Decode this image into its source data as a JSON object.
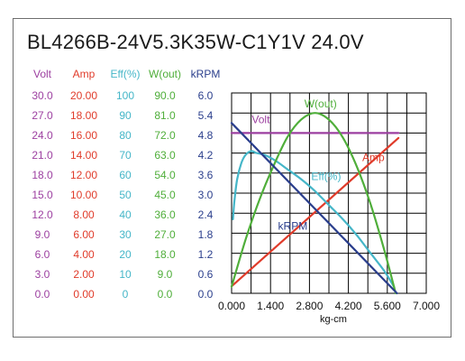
{
  "title": "BL4266B-24V5.3K35W-C1Y1V   24.0V",
  "chart_data": {
    "type": "line",
    "title": "BL4266B-24V5.3K35W-C1Y1V   24.0V",
    "xlabel": "kg-cm",
    "xlim": [
      0.0,
      7.0
    ],
    "x_ticks": [
      "0.000",
      "1.400",
      "2.800",
      "4.200",
      "5.600",
      "7.000"
    ],
    "grid": true,
    "y_axes": [
      {
        "key": "volt",
        "label": "Volt",
        "color": "#9c3fa0",
        "min": 0,
        "max": 30,
        "ticks": [
          "30.0",
          "27.0",
          "24.0",
          "21.0",
          "18.0",
          "15.0",
          "12.0",
          "9.0",
          "6.0",
          "3.0",
          "0.0"
        ]
      },
      {
        "key": "amp",
        "label": "Amp",
        "color": "#e03b2a",
        "min": 0,
        "max": 20,
        "ticks": [
          "20.00",
          "18.00",
          "16.00",
          "14.00",
          "12.00",
          "10.00",
          "8.00",
          "6.00",
          "4.00",
          "2.00",
          "0.00"
        ]
      },
      {
        "key": "eff",
        "label": "Eff(%)",
        "color": "#45b6c8",
        "min": 0,
        "max": 100,
        "ticks": [
          "100",
          "90",
          "80",
          "70",
          "60",
          "50",
          "40",
          "30",
          "20",
          "10",
          "0"
        ]
      },
      {
        "key": "wout",
        "label": "W(out)",
        "color": "#4fae3a",
        "min": 0,
        "max": 90,
        "ticks": [
          "90.0",
          "81.0",
          "72.0",
          "63.0",
          "54.0",
          "45.0",
          "36.0",
          "27.0",
          "18.0",
          "9.0",
          "0.0"
        ]
      },
      {
        "key": "krpm",
        "label": "kRPM",
        "color": "#2a3e8c",
        "min": 0,
        "max": 6,
        "ticks": [
          "6.0",
          "5.4",
          "4.8",
          "4.2",
          "3.6",
          "3.0",
          "2.4",
          "1.8",
          "1.2",
          "0.6",
          "0.0"
        ]
      }
    ],
    "series": [
      {
        "name": "Volt",
        "axis": "volt",
        "color": "#9c3fa0",
        "x": [
          0.0,
          6.0
        ],
        "y": [
          24.0,
          24.0
        ]
      },
      {
        "name": "Amp",
        "axis": "amp",
        "color": "#e03b2a",
        "x": [
          0.0,
          6.0
        ],
        "y": [
          0.7,
          15.5
        ]
      },
      {
        "name": "Eff(%)",
        "axis": "eff",
        "color": "#45b6c8",
        "x": [
          0.05,
          0.1,
          0.2,
          0.35,
          0.5,
          0.7,
          0.9,
          1.2,
          1.6,
          2.0,
          2.5,
          3.0,
          3.5,
          4.0,
          4.5,
          5.0,
          5.5,
          5.85
        ],
        "y": [
          37,
          46,
          57,
          65,
          69,
          71,
          70,
          69,
          66,
          62,
          57,
          51,
          44,
          37,
          29,
          20,
          11,
          3
        ]
      },
      {
        "name": "W(out)",
        "axis": "wout",
        "color": "#4fae3a",
        "x": [
          0.0,
          0.5,
          1.0,
          1.5,
          2.0,
          2.5,
          3.0,
          3.5,
          4.0,
          4.5,
          5.0,
          5.5,
          5.9
        ],
        "y": [
          3,
          24,
          42,
          57,
          70,
          78,
          81,
          78,
          70,
          57,
          40,
          19,
          0
        ]
      },
      {
        "name": "kRPM",
        "axis": "krpm",
        "color": "#2a3e8c",
        "x": [
          0.0,
          5.95
        ],
        "y": [
          5.1,
          0.0
        ]
      }
    ],
    "annotations": [
      {
        "text": "Volt",
        "color": "#9c3fa0",
        "x": 1.05,
        "axis": "volt",
        "y": 25.5
      },
      {
        "text": "W(out)",
        "color": "#4fae3a",
        "x": 3.2,
        "axis": "wout",
        "y": 83.5
      },
      {
        "text": "Eff(%)",
        "color": "#45b6c8",
        "x": 3.4,
        "axis": "eff",
        "y": 56.5
      },
      {
        "text": "Amp",
        "color": "#e03b2a",
        "x": 5.1,
        "axis": "amp",
        "y": 13.2
      },
      {
        "text": "kRPM",
        "color": "#2a3e8c",
        "x": 2.2,
        "axis": "krpm",
        "y": 1.9
      }
    ]
  }
}
